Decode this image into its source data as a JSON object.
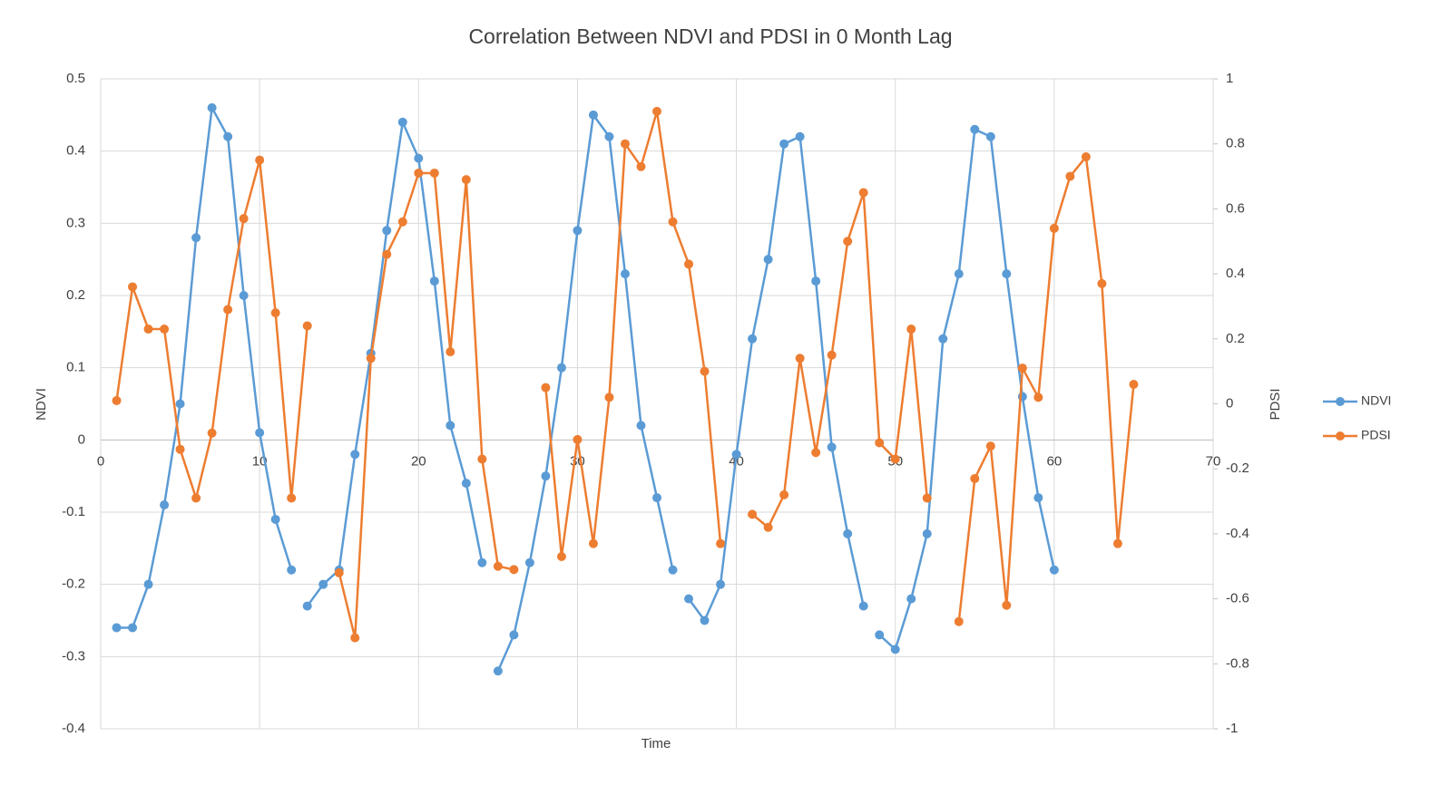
{
  "chart_data": {
    "type": "line",
    "title": "Correlation Between NDVI and PDSI in 0 Month Lag",
    "x_label": "Time",
    "y_label": "NDVI",
    "y2_label": "PDSI",
    "xlim": [
      0,
      70
    ],
    "xticks": [
      0,
      10,
      20,
      30,
      40,
      50,
      60,
      70
    ],
    "ylim": [
      -0.4,
      0.5
    ],
    "yticks": [
      -0.4,
      -0.3,
      -0.2,
      -0.1,
      0,
      0.1,
      0.2,
      0.3,
      0.4,
      0.5
    ],
    "y2lim": [
      -1,
      1
    ],
    "y2ticks": [
      -1,
      -0.8,
      -0.6,
      -0.4,
      -0.2,
      0,
      0.2,
      0.4,
      0.6,
      0.8,
      1
    ],
    "grid": true,
    "legend": "right",
    "series": [
      {
        "name": "NDVI",
        "color": "#5b9bd5",
        "axis": "y",
        "x": [
          1,
          2,
          3,
          4,
          5,
          6,
          7,
          8,
          9,
          10,
          11,
          12,
          null,
          13,
          14,
          15,
          16,
          17,
          18,
          19,
          20,
          21,
          22,
          23,
          24,
          null,
          25,
          26,
          27,
          28,
          29,
          30,
          31,
          32,
          33,
          34,
          35,
          36,
          null,
          37,
          38,
          39,
          40,
          41,
          42,
          43,
          44,
          45,
          46,
          47,
          48,
          null,
          49,
          50,
          51,
          52,
          53,
          54,
          55,
          56,
          57,
          58,
          59,
          60
        ],
        "values": [
          -0.26,
          -0.26,
          -0.2,
          -0.09,
          0.05,
          0.28,
          0.46,
          0.42,
          0.2,
          0.01,
          -0.11,
          -0.18,
          null,
          -0.23,
          -0.2,
          -0.18,
          -0.02,
          0.12,
          0.29,
          0.44,
          0.39,
          0.22,
          0.02,
          -0.06,
          -0.17,
          null,
          -0.32,
          -0.27,
          -0.17,
          -0.05,
          0.1,
          0.29,
          0.45,
          0.42,
          0.23,
          0.02,
          -0.08,
          -0.18,
          null,
          -0.22,
          -0.25,
          -0.2,
          -0.02,
          0.14,
          0.25,
          0.41,
          0.42,
          0.22,
          -0.01,
          -0.13,
          -0.23,
          null,
          -0.27,
          -0.29,
          -0.22,
          -0.13,
          0.14,
          0.23,
          0.43,
          0.42,
          0.23,
          0.06,
          -0.08,
          -0.18
        ]
      },
      {
        "name": "PDSI",
        "color": "#ed7d31",
        "axis": "y2",
        "x": [
          1,
          2,
          3,
          4,
          5,
          6,
          7,
          8,
          9,
          10,
          11,
          12,
          13,
          14,
          15,
          16,
          17,
          18,
          19,
          20,
          21,
          22,
          23,
          24,
          25,
          26,
          27,
          28,
          29,
          30,
          31,
          32,
          33,
          34,
          35,
          36,
          37,
          38,
          39,
          40,
          41,
          42,
          43,
          44,
          45,
          46,
          47,
          48,
          49,
          50,
          51,
          52,
          53,
          54,
          55,
          56,
          57,
          58,
          59,
          60,
          61,
          62,
          63,
          64,
          65
        ],
        "values": [
          0.01,
          0.36,
          0.23,
          0.23,
          -0.14,
          -0.29,
          -0.09,
          0.29,
          0.57,
          0.75,
          0.28,
          -0.29,
          0.24,
          null,
          -0.52,
          -0.72,
          0.14,
          0.46,
          0.56,
          0.71,
          0.71,
          0.16,
          0.69,
          -0.17,
          -0.5,
          -0.51,
          null,
          0.05,
          -0.47,
          -0.11,
          -0.43,
          0.02,
          0.8,
          0.73,
          0.9,
          0.56,
          0.43,
          0.1,
          -0.43,
          null,
          -0.34,
          -0.38,
          -0.28,
          0.14,
          -0.15,
          0.15,
          0.5,
          0.65,
          -0.12,
          -0.17,
          0.23,
          -0.29,
          null,
          -0.67,
          -0.23,
          -0.13,
          -0.62,
          0.11,
          0.02,
          0.54,
          0.7,
          0.76,
          0.37,
          -0.43,
          0.06
        ]
      }
    ]
  }
}
